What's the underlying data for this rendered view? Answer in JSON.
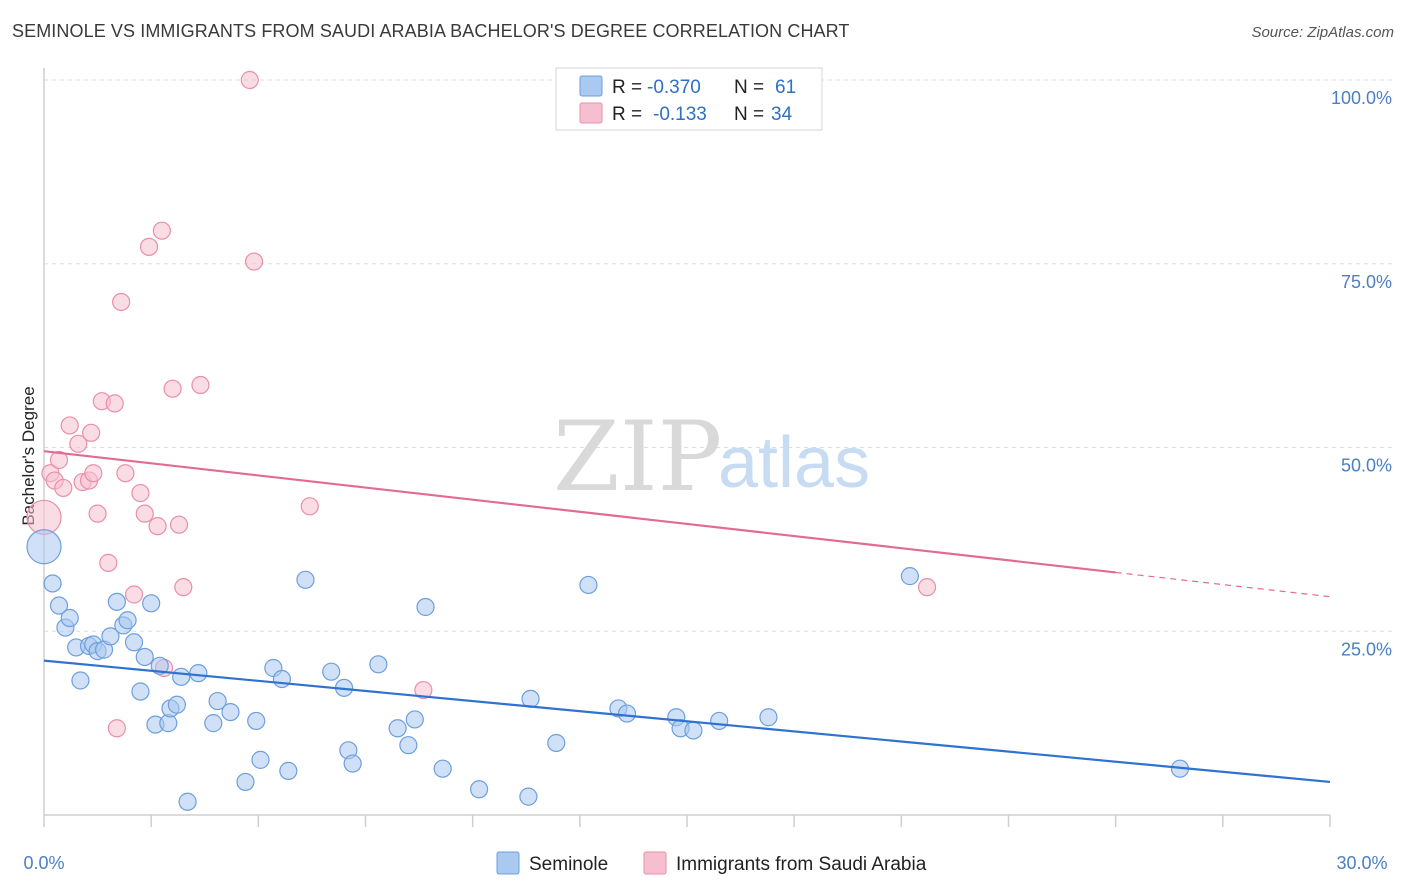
{
  "header": {
    "title": "SEMINOLE VS IMMIGRANTS FROM SAUDI ARABIA BACHELOR'S DEGREE CORRELATION CHART",
    "source": "Source: ZipAtlas.com"
  },
  "watermark": {
    "zip": "ZIP",
    "atlas": "atlas"
  },
  "colors": {
    "seminole_fill": "#a9c9f1",
    "seminole_stroke": "#6d9fdc",
    "seminole_line": "#2f72d0",
    "saudi_fill": "#f6bfd0",
    "saudi_stroke": "#e98faa",
    "saudi_line": "#e26a95",
    "grid": "#dddddd",
    "tick_label": "#4a7fc4"
  },
  "legend": {
    "r_label": "R =",
    "n_label": "N =",
    "rows": [
      {
        "r": "-0.370",
        "n": "61"
      },
      {
        "r": "-0.133",
        "n": "34"
      }
    ]
  },
  "chart_data": {
    "type": "scatter",
    "title": "SEMINOLE VS IMMIGRANTS FROM SAUDI ARABIA BACHELOR'S DEGREE CORRELATION CHART",
    "xlabel": "",
    "ylabel": "Bachelor's Degree",
    "xlim": [
      0,
      30
    ],
    "ylim": [
      0,
      100
    ],
    "x_tick_labels": [
      "0.0%",
      "30.0%"
    ],
    "y_ticks": [
      25,
      50,
      75,
      100
    ],
    "y_tick_labels": [
      "25.0%",
      "50.0%",
      "75.0%",
      "100.0%"
    ],
    "grid": true,
    "legend_position": "top-center",
    "series": [
      {
        "name": "Seminole",
        "r": -0.37,
        "n": 61,
        "trend": {
          "x": [
            0,
            30
          ],
          "y": [
            21.0,
            4.5
          ]
        },
        "points": [
          {
            "x": 0.0,
            "y": 36.5,
            "big": true
          },
          {
            "x": 0.2,
            "y": 31.5
          },
          {
            "x": 0.35,
            "y": 28.5
          },
          {
            "x": 0.5,
            "y": 25.5
          },
          {
            "x": 0.6,
            "y": 26.8
          },
          {
            "x": 0.75,
            "y": 22.8
          },
          {
            "x": 0.85,
            "y": 18.3
          },
          {
            "x": 1.05,
            "y": 23.0
          },
          {
            "x": 1.15,
            "y": 23.2
          },
          {
            "x": 1.25,
            "y": 22.3
          },
          {
            "x": 1.4,
            "y": 22.5
          },
          {
            "x": 1.55,
            "y": 24.3
          },
          {
            "x": 1.7,
            "y": 29.0
          },
          {
            "x": 1.85,
            "y": 25.8
          },
          {
            "x": 1.95,
            "y": 26.5
          },
          {
            "x": 2.1,
            "y": 23.5
          },
          {
            "x": 2.25,
            "y": 16.8
          },
          {
            "x": 2.35,
            "y": 21.5
          },
          {
            "x": 2.5,
            "y": 28.8
          },
          {
            "x": 2.6,
            "y": 12.3
          },
          {
            "x": 2.7,
            "y": 20.3
          },
          {
            "x": 2.9,
            "y": 12.5
          },
          {
            "x": 2.95,
            "y": 14.5
          },
          {
            "x": 3.1,
            "y": 15.0
          },
          {
            "x": 3.2,
            "y": 18.8
          },
          {
            "x": 3.35,
            "y": 1.8
          },
          {
            "x": 3.6,
            "y": 19.3
          },
          {
            "x": 3.95,
            "y": 12.5
          },
          {
            "x": 4.05,
            "y": 15.5
          },
          {
            "x": 4.35,
            "y": 14.0
          },
          {
            "x": 4.7,
            "y": 4.5
          },
          {
            "x": 4.95,
            "y": 12.8
          },
          {
            "x": 5.05,
            "y": 7.5
          },
          {
            "x": 5.35,
            "y": 20.0
          },
          {
            "x": 5.55,
            "y": 18.5
          },
          {
            "x": 5.7,
            "y": 6.0
          },
          {
            "x": 6.1,
            "y": 32.0
          },
          {
            "x": 6.7,
            "y": 19.5
          },
          {
            "x": 7.0,
            "y": 17.3
          },
          {
            "x": 7.1,
            "y": 8.8
          },
          {
            "x": 7.2,
            "y": 7.0
          },
          {
            "x": 7.8,
            "y": 20.5
          },
          {
            "x": 8.25,
            "y": 11.8
          },
          {
            "x": 8.5,
            "y": 9.5
          },
          {
            "x": 8.65,
            "y": 13.0
          },
          {
            "x": 8.9,
            "y": 28.3
          },
          {
            "x": 9.3,
            "y": 6.3
          },
          {
            "x": 10.15,
            "y": 3.5
          },
          {
            "x": 11.3,
            "y": 2.5
          },
          {
            "x": 11.35,
            "y": 15.8
          },
          {
            "x": 11.95,
            "y": 9.8
          },
          {
            "x": 12.7,
            "y": 31.3
          },
          {
            "x": 13.4,
            "y": 14.5
          },
          {
            "x": 13.6,
            "y": 13.8
          },
          {
            "x": 14.75,
            "y": 13.3
          },
          {
            "x": 14.85,
            "y": 11.8
          },
          {
            "x": 15.15,
            "y": 11.5
          },
          {
            "x": 15.75,
            "y": 12.8
          },
          {
            "x": 16.9,
            "y": 13.3
          },
          {
            "x": 20.2,
            "y": 32.5
          },
          {
            "x": 26.5,
            "y": 6.3
          }
        ]
      },
      {
        "name": "Immigrants from Saudi Arabia",
        "r": -0.133,
        "n": 34,
        "trend": {
          "x": [
            0,
            25.0
          ],
          "y": [
            49.5,
            33.0
          ]
        },
        "trend_dashed": {
          "x": [
            25.0,
            30
          ],
          "y": [
            33.0,
            29.7
          ]
        },
        "points": [
          {
            "x": 0.0,
            "y": 40.5,
            "big": true
          },
          {
            "x": 0.15,
            "y": 46.5
          },
          {
            "x": 0.25,
            "y": 45.5
          },
          {
            "x": 0.35,
            "y": 48.3
          },
          {
            "x": 0.45,
            "y": 44.5
          },
          {
            "x": 0.6,
            "y": 53.0
          },
          {
            "x": 0.8,
            "y": 50.5
          },
          {
            "x": 0.9,
            "y": 45.3
          },
          {
            "x": 1.05,
            "y": 45.5
          },
          {
            "x": 1.1,
            "y": 52.0
          },
          {
            "x": 1.15,
            "y": 46.5
          },
          {
            "x": 1.25,
            "y": 41.0
          },
          {
            "x": 1.35,
            "y": 56.3
          },
          {
            "x": 1.5,
            "y": 34.3
          },
          {
            "x": 1.65,
            "y": 56.0
          },
          {
            "x": 1.7,
            "y": 11.8
          },
          {
            "x": 1.8,
            "y": 69.8
          },
          {
            "x": 1.9,
            "y": 46.5
          },
          {
            "x": 2.1,
            "y": 30.0
          },
          {
            "x": 2.25,
            "y": 43.8
          },
          {
            "x": 2.35,
            "y": 41.0
          },
          {
            "x": 2.45,
            "y": 77.3
          },
          {
            "x": 2.65,
            "y": 39.3
          },
          {
            "x": 2.75,
            "y": 79.5
          },
          {
            "x": 2.8,
            "y": 20.0
          },
          {
            "x": 3.0,
            "y": 58.0
          },
          {
            "x": 3.15,
            "y": 39.5
          },
          {
            "x": 3.25,
            "y": 31.0
          },
          {
            "x": 3.65,
            "y": 58.5
          },
          {
            "x": 4.8,
            "y": 100.0
          },
          {
            "x": 4.9,
            "y": 75.3
          },
          {
            "x": 6.2,
            "y": 42.0
          },
          {
            "x": 8.85,
            "y": 17.0
          },
          {
            "x": 20.6,
            "y": 31.0
          }
        ]
      }
    ]
  }
}
